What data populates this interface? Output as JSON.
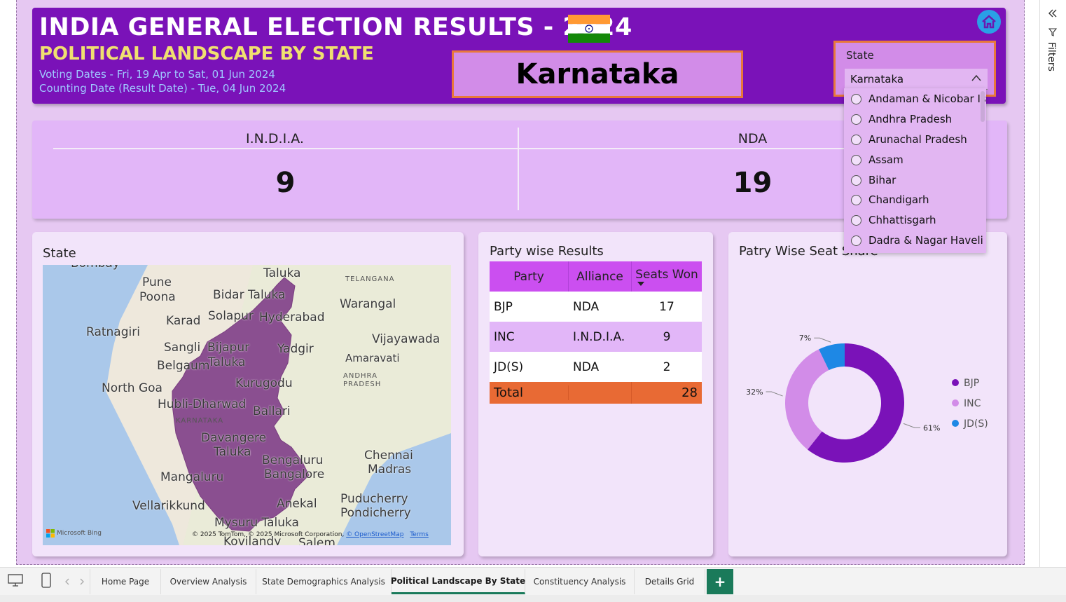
{
  "header": {
    "title": "INDIA GENERAL ELECTION RESULTS - 2024",
    "subtitle": "POLITICAL LANDSCAPE BY STATE",
    "voting_dates": "Voting Dates - Fri, 19 Apr to Sat, 01 Jun 2024",
    "counting_date": "Counting Date (Result Date) - Tue, 04 Jun 2024",
    "selected_state": "Karnataka",
    "home_icon": "home-icon",
    "flag_icon": "india-flag-icon"
  },
  "slicer": {
    "label": "State",
    "selected": "Karnataka",
    "options": [
      "Andaman & Nicobar Is...",
      "Andhra Pradesh",
      "Arunachal Pradesh",
      "Assam",
      "Bihar",
      "Chandigarh",
      "Chhattisgarh",
      "Dadra & Nagar Haveli ..."
    ]
  },
  "kpi": {
    "india_label": "I.N.D.I.A.",
    "india_value": "9",
    "nda_label": "NDA",
    "nda_value": "19"
  },
  "map_card": {
    "title": "State",
    "labels": [
      "Bombay",
      "Pune",
      "Poona",
      "Taluka",
      "Bidar Taluka",
      "TELANGANA",
      "Warangal",
      "Karad",
      "Solapur",
      "Hyderabad",
      "Ratnagiri",
      "Sangli",
      "Bijapur",
      "Yadgir",
      "Vijayawada",
      "Belgaum",
      "Taluka",
      "Amaravati",
      "ANDHRA PRADESH",
      "North Goa",
      "Kurugodu",
      "Hubli-Dharwad",
      "Ballari",
      "KARNATAKA",
      "Davangere",
      "Taluka",
      "Chennai",
      "Madras",
      "Bengaluru",
      "Bangalore",
      "Mangaluru",
      "Vellarikkund",
      "Anekal",
      "Puducherry",
      "Pondicherry",
      "Mysuru Taluka",
      "Kovilandy",
      "Salem"
    ],
    "attribution": "© 2025 TomTom, © 2025 Microsoft Corporation,",
    "osm_link": "© OpenStreetMap",
    "terms_link": "Terms",
    "bing_logo": "Microsoft Bing"
  },
  "results_card": {
    "title": "Party wise Results",
    "columns": [
      "Party",
      "Alliance",
      "Seats Won"
    ],
    "rows": [
      {
        "party": "BJP",
        "alliance": "NDA",
        "seats": "17"
      },
      {
        "party": "INC",
        "alliance": "I.N.D.I.A.",
        "seats": "9"
      },
      {
        "party": "JD(S)",
        "alliance": "NDA",
        "seats": "2"
      }
    ],
    "total_label": "Total",
    "total_value": "28"
  },
  "share_card": {
    "title": "Patry Wise Seat Share"
  },
  "chart_data": {
    "type": "pie",
    "donut": true,
    "categories": [
      "BJP",
      "INC",
      "JD(S)"
    ],
    "values": [
      17,
      9,
      2
    ],
    "data_labels": [
      "61%",
      "32%",
      "7%"
    ],
    "colors": [
      "#7a12b8",
      "#d28ce8",
      "#1e88e5"
    ],
    "legend_position": "right"
  },
  "tabs": [
    "Home Page",
    "Overview Analysis",
    "State Demographics Analysis",
    "Political Landscape By State",
    "Constituency Analysis",
    "Details Grid"
  ],
  "active_tab": "Political Landscape By State",
  "add_tab_label": "+",
  "filters_pane": {
    "label": "Filters"
  },
  "colors": {
    "header_bg": "#7a12b8",
    "accent_orange": "#e86a34",
    "subtitle_yellow": "#f0e070"
  }
}
